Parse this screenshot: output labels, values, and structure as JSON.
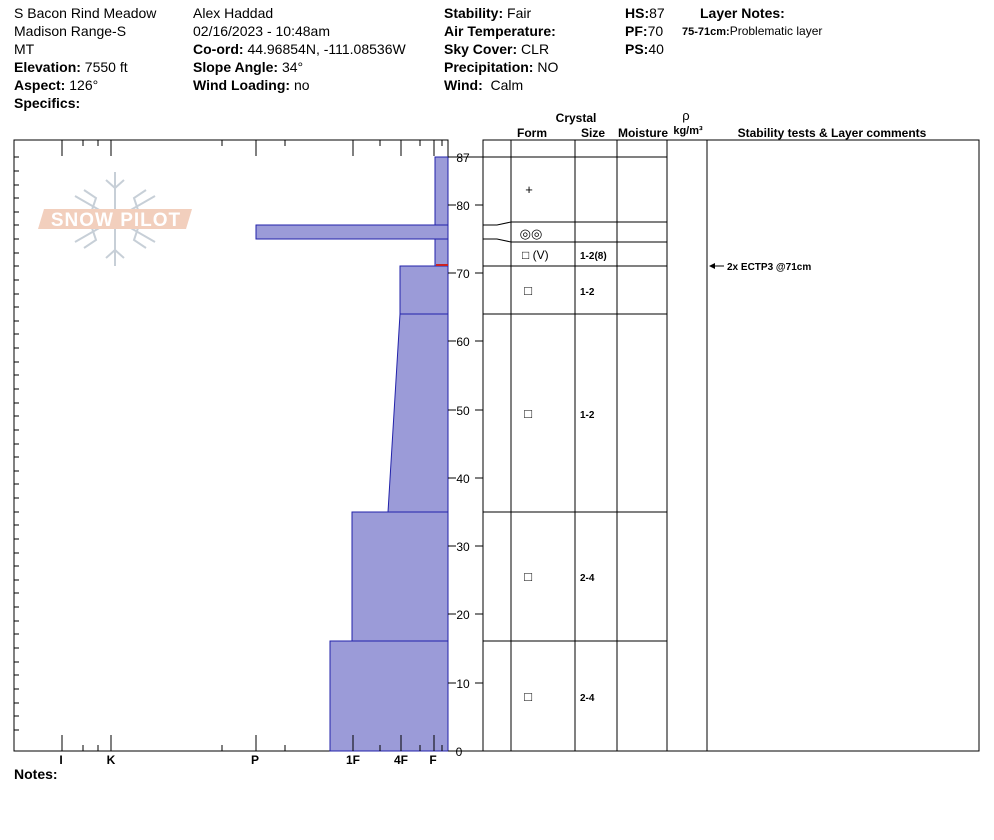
{
  "site": {
    "name": "S Bacon Rind Meadow",
    "range": "Madison Range-S",
    "state": "MT",
    "elevation_label": "Elevation:",
    "elevation": "7550 ft",
    "aspect_label": "Aspect:",
    "aspect": "126°",
    "specifics_label": "Specifics:"
  },
  "observer": {
    "name": "Alex Haddad",
    "datetime": "02/16/2023 - 10:48am",
    "coord_label": "Co-ord:",
    "coord": "44.96854N, -111.08536W",
    "slope_label": "Slope Angle:",
    "slope": "34°",
    "wind_loading_label": "Wind Loading:",
    "wind_loading": "no"
  },
  "conditions": {
    "stability_label": "Stability:",
    "stability": "Fair",
    "air_temp_label": "Air Temperature:",
    "sky_label": "Sky Cover:",
    "sky": "CLR",
    "precip_label": "Precipitation:",
    "precip": "NO",
    "wind_label": "Wind:",
    "wind": "Calm"
  },
  "depths": {
    "hs_label": "HS:",
    "hs": "87",
    "pf_label": "PF:",
    "pf": "70",
    "ps_label": "PS:",
    "ps": "40"
  },
  "layer_notes": {
    "title": "Layer Notes:",
    "range": "75-71cm:",
    "text": "Problematic layer"
  },
  "logo_text": "SNOW PILOT",
  "columns": {
    "crystal": "Crystal",
    "form": "Form",
    "size": "Size",
    "moisture": "Moisture",
    "rho": "ρ",
    "density_unit": "kg/m³",
    "stability_comments": "Stability tests & Layer comments"
  },
  "notes_label": "Notes:",
  "chart_data": {
    "type": "snow-profile",
    "y_axis": {
      "min": 0,
      "max": 87,
      "unit": "cm",
      "ticks": [
        0,
        10,
        20,
        30,
        40,
        50,
        60,
        70,
        80,
        87
      ]
    },
    "hardness_scale": [
      "I",
      "K",
      "P",
      "1F",
      "4F",
      "F"
    ],
    "hardness_profile": [
      {
        "top": 87,
        "bottom": 76,
        "hardness_top": "F",
        "hardness_bottom": "F"
      },
      {
        "top": 76,
        "bottom": 74,
        "hardness_top": "P",
        "hardness_bottom": "P"
      },
      {
        "top": 74,
        "bottom": 71,
        "hardness_top": "F",
        "hardness_bottom": "F"
      },
      {
        "top": 71,
        "bottom": 64,
        "hardness_top": "4F",
        "hardness_bottom": "4F"
      },
      {
        "top": 64,
        "bottom": 35,
        "hardness_top": "4F",
        "hardness_bottom": "4F-"
      },
      {
        "top": 35,
        "bottom": 16,
        "hardness_top": "1F",
        "hardness_bottom": "1F"
      },
      {
        "top": 16,
        "bottom": 0,
        "hardness_top": "1F+",
        "hardness_bottom": "1F+"
      }
    ],
    "marked_layer_cm": 71,
    "layers": [
      {
        "top": 87,
        "bottom": 77,
        "form": "+",
        "size": ""
      },
      {
        "top": 77,
        "bottom": 74,
        "form": "◎◎",
        "size": ""
      },
      {
        "top": 74,
        "bottom": 71,
        "form": "□ (V)",
        "size": "1-2(8)"
      },
      {
        "top": 71,
        "bottom": 64,
        "form": "□",
        "size": "1-2"
      },
      {
        "top": 64,
        "bottom": 35,
        "form": "□",
        "size": "1-2"
      },
      {
        "top": 35,
        "bottom": 16,
        "form": "□",
        "size": "2-4"
      },
      {
        "top": 16,
        "bottom": 0,
        "form": "□",
        "size": "2-4"
      }
    ],
    "stability_tests": [
      {
        "depth": 71,
        "label": "2x ECTP3 @71cm"
      }
    ]
  }
}
